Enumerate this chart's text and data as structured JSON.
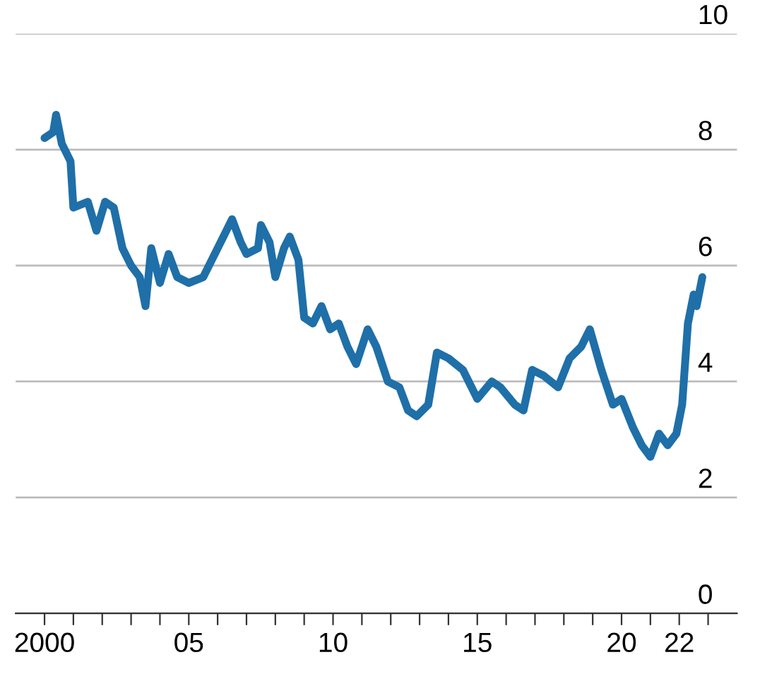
{
  "chart_data": {
    "type": "line",
    "x": [
      2000.0,
      2000.3,
      2000.4,
      2000.6,
      2000.9,
      2001.0,
      2001.5,
      2001.8,
      2002.1,
      2002.4,
      2002.7,
      2003.0,
      2003.3,
      2003.5,
      2003.7,
      2004.0,
      2004.3,
      2004.6,
      2005.0,
      2005.5,
      2005.8,
      2006.3,
      2006.5,
      2006.8,
      2007.0,
      2007.4,
      2007.5,
      2007.8,
      2008.0,
      2008.3,
      2008.5,
      2008.8,
      2009.0,
      2009.3,
      2009.6,
      2009.9,
      2010.2,
      2010.5,
      2010.8,
      2011.2,
      2011.5,
      2011.9,
      2012.3,
      2012.6,
      2012.9,
      2013.3,
      2013.6,
      2014.0,
      2014.5,
      2015.0,
      2015.5,
      2015.8,
      2016.3,
      2016.6,
      2016.9,
      2017.3,
      2017.8,
      2018.2,
      2018.6,
      2018.9,
      2019.3,
      2019.7,
      2020.0,
      2020.4,
      2020.7,
      2021.0,
      2021.3,
      2021.6,
      2021.9,
      2022.1,
      2022.3,
      2022.5,
      2022.6,
      2022.8
    ],
    "series": [
      {
        "color": "#1f6fa8",
        "values": [
          8.2,
          8.3,
          8.6,
          8.1,
          7.8,
          7.0,
          7.1,
          6.6,
          7.1,
          7.0,
          6.3,
          6.0,
          5.8,
          5.3,
          6.3,
          5.7,
          6.2,
          5.8,
          5.7,
          5.8,
          6.1,
          6.6,
          6.8,
          6.4,
          6.2,
          6.3,
          6.7,
          6.4,
          5.8,
          6.3,
          6.5,
          6.1,
          5.1,
          5.0,
          5.3,
          4.9,
          5.0,
          4.6,
          4.3,
          4.9,
          4.6,
          4.0,
          3.9,
          3.5,
          3.4,
          3.6,
          4.5,
          4.4,
          4.2,
          3.7,
          4.0,
          3.9,
          3.6,
          3.5,
          4.2,
          4.1,
          3.9,
          4.4,
          4.6,
          4.9,
          4.2,
          3.6,
          3.7,
          3.2,
          2.9,
          2.7,
          3.1,
          2.9,
          3.1,
          3.6,
          5.0,
          5.5,
          5.3,
          5.8
        ]
      }
    ],
    "xlim": [
      1999,
      2024
    ],
    "xticks": [
      {
        "value": 2000,
        "label": "2000"
      },
      {
        "value": 2001,
        "label": null
      },
      {
        "value": 2002,
        "label": null
      },
      {
        "value": 2003,
        "label": null
      },
      {
        "value": 2004,
        "label": null
      },
      {
        "value": 2005,
        "label": "05"
      },
      {
        "value": 2006,
        "label": null
      },
      {
        "value": 2007,
        "label": null
      },
      {
        "value": 2008,
        "label": null
      },
      {
        "value": 2009,
        "label": null
      },
      {
        "value": 2010,
        "label": "10"
      },
      {
        "value": 2011,
        "label": null
      },
      {
        "value": 2012,
        "label": null
      },
      {
        "value": 2013,
        "label": null
      },
      {
        "value": 2014,
        "label": null
      },
      {
        "value": 2015,
        "label": "15"
      },
      {
        "value": 2016,
        "label": null
      },
      {
        "value": 2017,
        "label": null
      },
      {
        "value": 2018,
        "label": null
      },
      {
        "value": 2019,
        "label": null
      },
      {
        "value": 2020,
        "label": "20"
      },
      {
        "value": 2021,
        "label": null
      },
      {
        "value": 2022,
        "label": "22"
      },
      {
        "value": 2023,
        "label": null
      }
    ],
    "ylim": [
      0,
      10
    ],
    "yticks": [
      0,
      2,
      4,
      6,
      8,
      10
    ],
    "grid": "y",
    "legend": false,
    "marker": "none",
    "line_style": "solid"
  }
}
